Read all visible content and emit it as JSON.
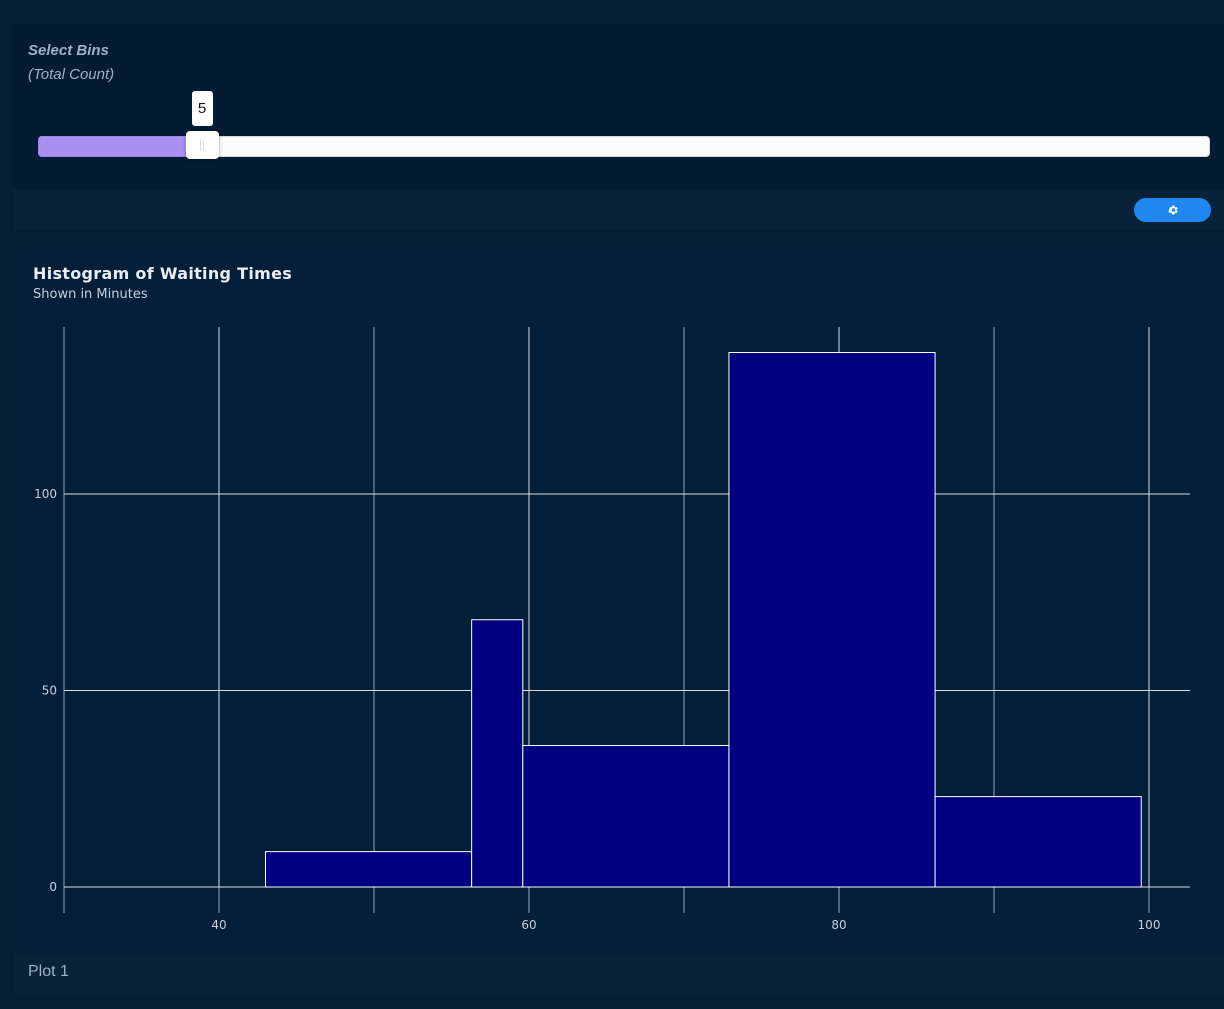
{
  "controls": {
    "bins_label": "Select Bins",
    "bins_sublabel": "(Total Count)",
    "bins_value": "5",
    "bins_fraction": 0.14
  },
  "toolbar": {
    "settings_icon": "gear-icon"
  },
  "chart": {
    "title": "Histogram of Waiting Times",
    "subtitle": "Shown in Minutes"
  },
  "footer": {
    "label": "Plot 1"
  },
  "colors": {
    "background": "#041e36",
    "bar_fill": "#020080",
    "bar_stroke": "#ffffff",
    "slider_fill": "#a88ff0",
    "button": "#1e88f0"
  },
  "chart_data": {
    "type": "bar",
    "title": "Histogram of Waiting Times",
    "subtitle": "Shown in Minutes",
    "xlabel": "",
    "ylabel": "",
    "bins": [
      {
        "x0": 43.0,
        "x1": 56.3,
        "count": 9
      },
      {
        "x0": 56.3,
        "x1": 59.6,
        "count": 68
      },
      {
        "x0": 59.6,
        "x1": 72.9,
        "count": 36
      },
      {
        "x0": 72.9,
        "x1": 86.2,
        "count": 136
      },
      {
        "x0": 86.2,
        "x1": 99.5,
        "count": 23
      }
    ],
    "xlim": [
      30,
      103
    ],
    "ylim": [
      0,
      143
    ],
    "x_ticks": [
      40,
      60,
      80,
      100
    ],
    "y_ticks": [
      0,
      50,
      100
    ],
    "grid": true
  }
}
